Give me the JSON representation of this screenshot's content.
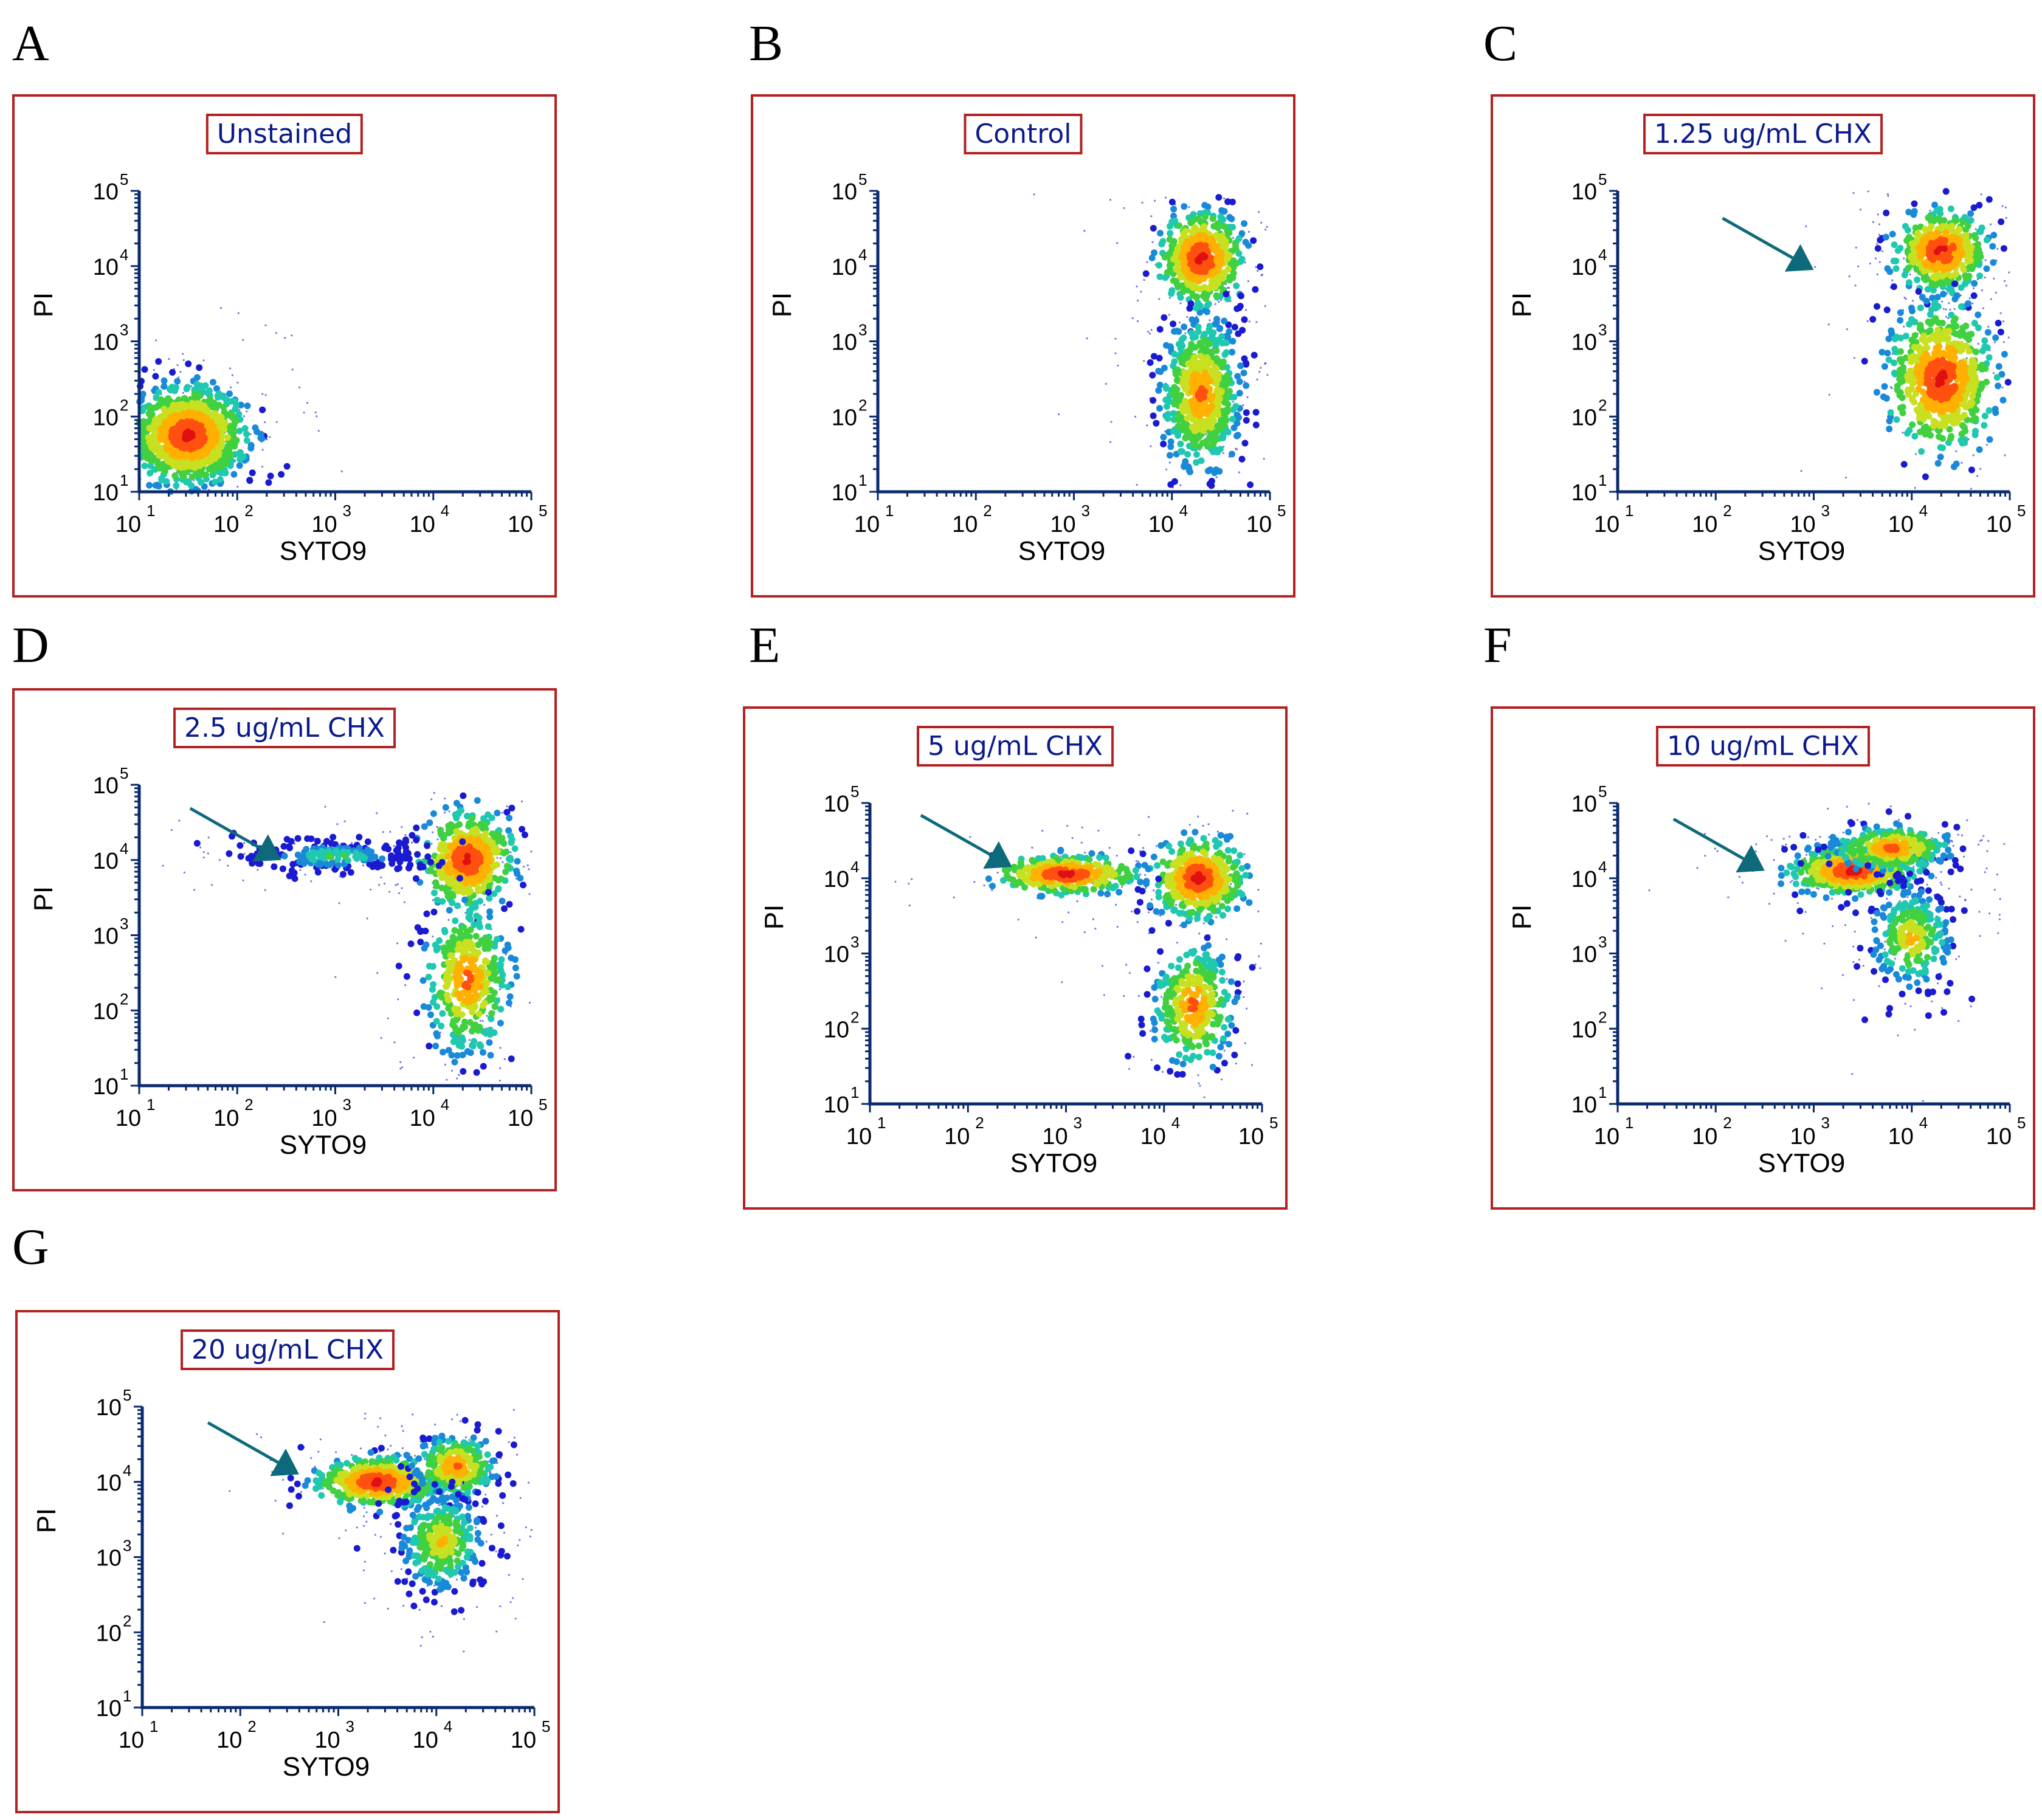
{
  "figure": {
    "colors": {
      "frame": "#b22222",
      "axis": "#0a2a6e",
      "title_text": "#0a1a8c",
      "arrow": "#0e6a7a"
    },
    "colormap": [
      "#1a1ad0",
      "#1a8ad8",
      "#20c8b0",
      "#40d040",
      "#c8e020",
      "#ffb000",
      "#ff5010",
      "#e01010"
    ]
  },
  "panels": [
    {
      "label": "A",
      "title": "Unstained"
    },
    {
      "label": "B",
      "title": "Control"
    },
    {
      "label": "C",
      "title": "1.25 ug/mL CHX"
    },
    {
      "label": "D",
      "title": "2.5 ug/mL CHX"
    },
    {
      "label": "E",
      "title": "5 ug/mL CHX"
    },
    {
      "label": "F",
      "title": "10 ug/mL CHX"
    },
    {
      "label": "G",
      "title": "20 ug/mL CHX"
    }
  ],
  "chart_data": [
    {
      "type": "scatter",
      "title": "Unstained",
      "xlabel": "SYTO9",
      "ylabel": "PI",
      "xscale": "log",
      "yscale": "log",
      "xlim": [
        10,
        100000
      ],
      "ylim": [
        10,
        100000
      ],
      "xticks": [
        "10",
        "10",
        "10",
        "10",
        "10"
      ],
      "xtick_exponents": [
        "1",
        "2",
        "3",
        "4",
        "5"
      ],
      "yticks": [
        "10",
        "10",
        "10",
        "10",
        "10"
      ],
      "ytick_exponents": [
        "1",
        "2",
        "3",
        "4",
        "5"
      ],
      "arrow": null,
      "populations": [
        {
          "center_log": [
            1.5,
            1.75
          ],
          "spread_log": [
            0.28,
            0.3
          ],
          "weight": 1.0,
          "peak": "red"
        }
      ]
    },
    {
      "type": "scatter",
      "title": "Control",
      "xlabel": "SYTO9",
      "ylabel": "PI",
      "xscale": "log",
      "yscale": "log",
      "xlim": [
        10,
        100000
      ],
      "ylim": [
        10,
        100000
      ],
      "xticks": [
        "10",
        "10",
        "10",
        "10",
        "10"
      ],
      "xtick_exponents": [
        "1",
        "2",
        "3",
        "4",
        "5"
      ],
      "yticks": [
        "10",
        "10",
        "10",
        "10",
        "10"
      ],
      "ytick_exponents": [
        "1",
        "2",
        "3",
        "4",
        "5"
      ],
      "arrow": null,
      "populations": [
        {
          "center_log": [
            4.3,
            4.1
          ],
          "spread_log": [
            0.2,
            0.3
          ],
          "weight": 0.45,
          "peak": "red"
        },
        {
          "center_log": [
            4.3,
            2.3
          ],
          "spread_log": [
            0.2,
            0.5
          ],
          "weight": 0.55,
          "peak": "orange"
        }
      ]
    },
    {
      "type": "scatter",
      "title": "1.25 ug/mL CHX",
      "xlabel": "SYTO9",
      "ylabel": "PI",
      "xscale": "log",
      "yscale": "log",
      "xlim": [
        10,
        100000
      ],
      "ylim": [
        10,
        100000
      ],
      "xticks": [
        "10",
        "10",
        "10",
        "10",
        "10"
      ],
      "xtick_exponents": [
        "1",
        "2",
        "3",
        "4",
        "5"
      ],
      "yticks": [
        "10",
        "10",
        "10",
        "10",
        "10"
      ],
      "ytick_exponents": [
        "1",
        "2",
        "3",
        "4",
        "5"
      ],
      "arrow": {
        "tip_log": [
          3.0,
          3.95
        ]
      },
      "populations": [
        {
          "center_log": [
            4.3,
            4.2
          ],
          "spread_log": [
            0.22,
            0.25
          ],
          "weight": 0.4,
          "peak": "red"
        },
        {
          "center_log": [
            4.3,
            2.5
          ],
          "spread_log": [
            0.25,
            0.45
          ],
          "weight": 0.6,
          "peak": "red"
        }
      ]
    },
    {
      "type": "scatter",
      "title": "2.5 ug/mL CHX",
      "xlabel": "SYTO9",
      "ylabel": "PI",
      "xscale": "log",
      "yscale": "log",
      "xlim": [
        10,
        100000
      ],
      "ylim": [
        10,
        100000
      ],
      "xticks": [
        "10",
        "10",
        "10",
        "10",
        "10"
      ],
      "xtick_exponents": [
        "1",
        "2",
        "3",
        "4",
        "5"
      ],
      "yticks": [
        "10",
        "10",
        "10",
        "10",
        "10"
      ],
      "ytick_exponents": [
        "1",
        "2",
        "3",
        "4",
        "5"
      ],
      "arrow": {
        "tip_log": [
          2.45,
          4.0
        ]
      },
      "populations": [
        {
          "center_log": [
            4.35,
            4.0
          ],
          "spread_log": [
            0.22,
            0.3
          ],
          "weight": 0.45,
          "peak": "red"
        },
        {
          "center_log": [
            4.35,
            2.4
          ],
          "spread_log": [
            0.22,
            0.5
          ],
          "weight": 0.35,
          "peak": "orange"
        },
        {
          "center_log": [
            3.0,
            4.05
          ],
          "spread_log": [
            0.5,
            0.12
          ],
          "weight": 0.2,
          "peak": "cyan"
        }
      ]
    },
    {
      "type": "scatter",
      "title": "5 ug/mL CHX",
      "xlabel": "SYTO9",
      "ylabel": "PI",
      "xscale": "log",
      "yscale": "log",
      "xlim": [
        10,
        100000
      ],
      "ylim": [
        10,
        100000
      ],
      "xticks": [
        "10",
        "10",
        "10",
        "10",
        "10"
      ],
      "xtick_exponents": [
        "1",
        "2",
        "3",
        "4",
        "5"
      ],
      "yticks": [
        "10",
        "10",
        "10",
        "10",
        "10"
      ],
      "ytick_exponents": [
        "1",
        "2",
        "3",
        "4",
        "5"
      ],
      "arrow": {
        "tip_log": [
          2.45,
          4.15
        ]
      },
      "populations": [
        {
          "center_log": [
            4.35,
            4.0
          ],
          "spread_log": [
            0.22,
            0.25
          ],
          "weight": 0.4,
          "peak": "red"
        },
        {
          "center_log": [
            3.0,
            4.05
          ],
          "spread_log": [
            0.35,
            0.12
          ],
          "weight": 0.3,
          "peak": "red"
        },
        {
          "center_log": [
            4.3,
            2.3
          ],
          "spread_log": [
            0.2,
            0.4
          ],
          "weight": 0.3,
          "peak": "orange"
        }
      ]
    },
    {
      "type": "scatter",
      "title": "10 ug/mL CHX",
      "xlabel": "SYTO9",
      "ylabel": "PI",
      "xscale": "log",
      "yscale": "log",
      "xlim": [
        10,
        100000
      ],
      "ylim": [
        10,
        100000
      ],
      "xticks": [
        "10",
        "10",
        "10",
        "10",
        "10"
      ],
      "xtick_exponents": [
        "1",
        "2",
        "3",
        "4",
        "5"
      ],
      "yticks": [
        "10",
        "10",
        "10",
        "10",
        "10"
      ],
      "ytick_exponents": [
        "1",
        "2",
        "3",
        "4",
        "5"
      ],
      "arrow": {
        "tip_log": [
          2.5,
          4.1
        ]
      },
      "populations": [
        {
          "center_log": [
            3.4,
            4.1
          ],
          "spread_log": [
            0.3,
            0.15
          ],
          "weight": 0.5,
          "peak": "red"
        },
        {
          "center_log": [
            3.8,
            4.4
          ],
          "spread_log": [
            0.3,
            0.15
          ],
          "weight": 0.25,
          "peak": "orange"
        },
        {
          "center_log": [
            4.0,
            3.2
          ],
          "spread_log": [
            0.22,
            0.35
          ],
          "weight": 0.25,
          "peak": "yellow"
        }
      ]
    },
    {
      "type": "scatter",
      "title": "20 ug/mL CHX",
      "xlabel": "SYTO9",
      "ylabel": "PI",
      "xscale": "log",
      "yscale": "log",
      "xlim": [
        10,
        100000
      ],
      "ylim": [
        10,
        100000
      ],
      "xticks": [
        "10",
        "10",
        "10",
        "10",
        "10"
      ],
      "xtick_exponents": [
        "1",
        "2",
        "3",
        "4",
        "5"
      ],
      "yticks": [
        "10",
        "10",
        "10",
        "10",
        "10"
      ],
      "ytick_exponents": [
        "1",
        "2",
        "3",
        "4",
        "5"
      ],
      "arrow": {
        "tip_log": [
          2.6,
          4.1
        ]
      },
      "populations": [
        {
          "center_log": [
            3.4,
            4.0
          ],
          "spread_log": [
            0.3,
            0.15
          ],
          "weight": 0.45,
          "peak": "red"
        },
        {
          "center_log": [
            4.2,
            4.2
          ],
          "spread_log": [
            0.2,
            0.2
          ],
          "weight": 0.25,
          "peak": "orange"
        },
        {
          "center_log": [
            4.05,
            3.2
          ],
          "spread_log": [
            0.22,
            0.35
          ],
          "weight": 0.3,
          "peak": "yellow"
        }
      ]
    }
  ]
}
